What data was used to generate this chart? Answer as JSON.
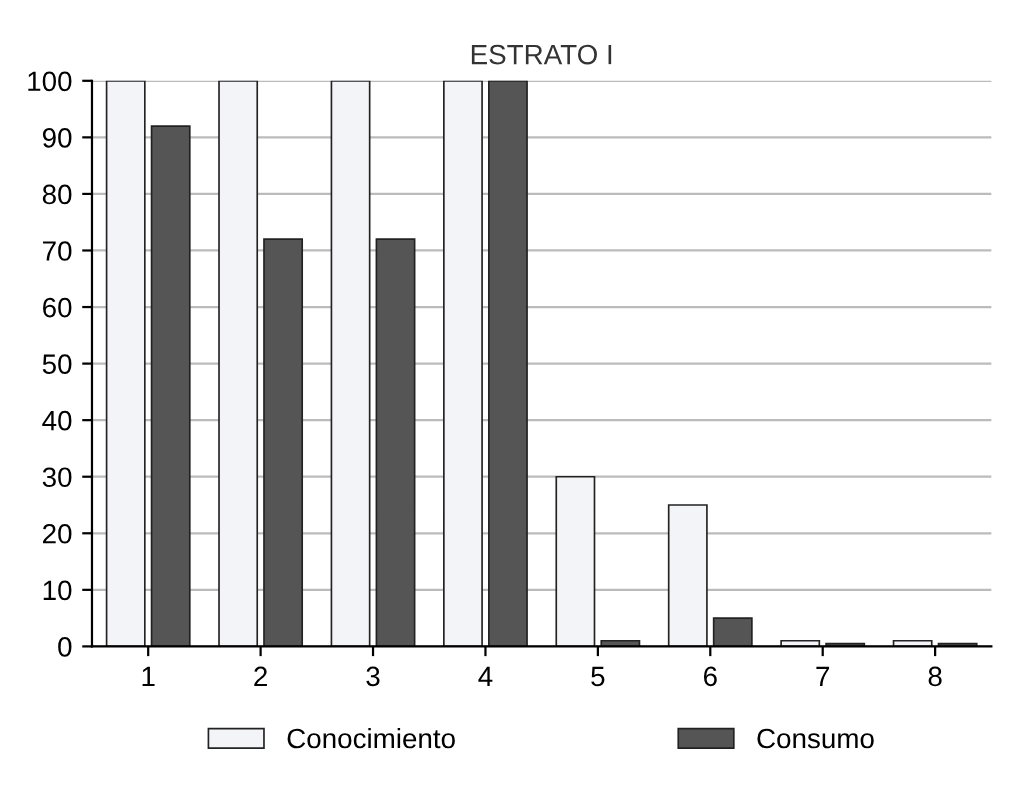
{
  "chart_data": {
    "type": "bar",
    "title": "ESTRATO I",
    "categories": [
      "1",
      "2",
      "3",
      "4",
      "5",
      "6",
      "7",
      "8"
    ],
    "series": [
      {
        "name": "Conocimiento",
        "color": "#f2f4f8",
        "values": [
          100,
          100,
          100,
          100,
          30,
          25,
          1,
          1
        ]
      },
      {
        "name": "Consumo",
        "color": "#555555",
        "values": [
          92,
          72,
          72,
          100,
          1,
          5,
          0.5,
          0.5
        ]
      }
    ],
    "ylim": [
      0,
      100
    ],
    "yticks": [
      0,
      10,
      20,
      30,
      40,
      50,
      60,
      70,
      80,
      90,
      100
    ],
    "grid": "y",
    "legend": "bottom"
  }
}
